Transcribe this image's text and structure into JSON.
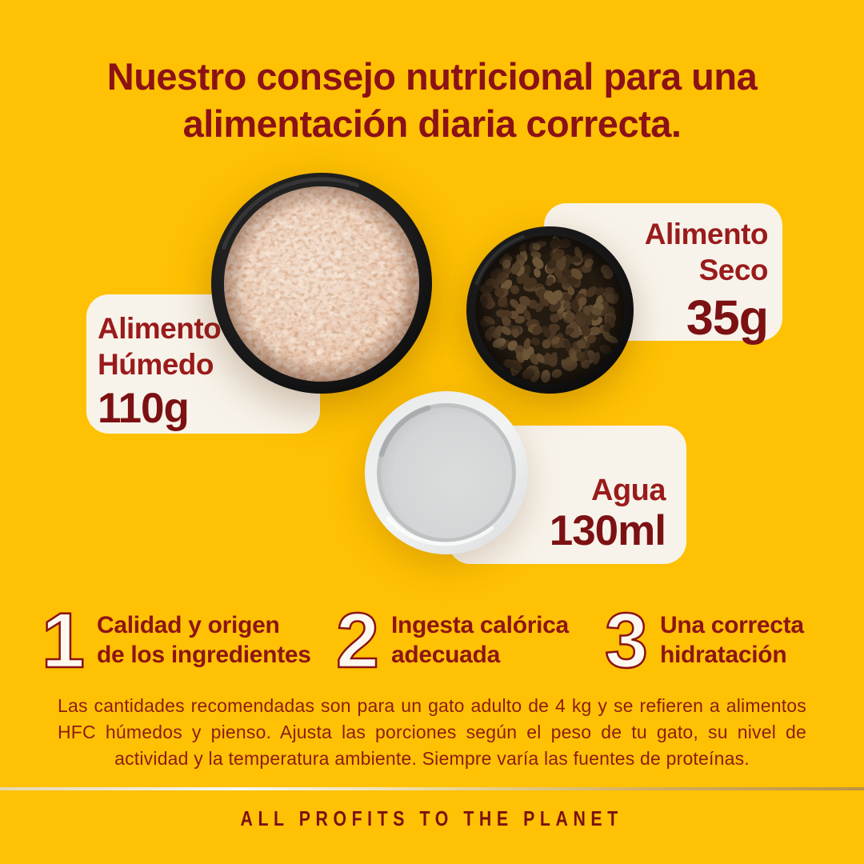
{
  "colors": {
    "background": "#FFC103",
    "card": "#F8F3EA",
    "title_red": "#8B1116",
    "label_red": "#9A1B1B",
    "amount_red": "#7C1113",
    "divider_gold": "#D4AF5E"
  },
  "title": {
    "line1": "Nuestro consejo nutricional para una",
    "line2": "alimentación diaria correcta."
  },
  "cards": {
    "humedo": {
      "label_line1": "Alimento",
      "label_line2": "Húmedo",
      "amount": "110g"
    },
    "seco": {
      "label_line1": "Alimento",
      "label_line2": "Seco",
      "amount": "35g"
    },
    "agua": {
      "label_line1": "Agua",
      "amount": "130ml"
    }
  },
  "bowls": [
    {
      "name": "wet-food-bowl"
    },
    {
      "name": "dry-food-bowl"
    },
    {
      "name": "water-bowl"
    }
  ],
  "tips": [
    {
      "number": "1",
      "line1": "Calidad y origen",
      "line2": "de los ingredientes"
    },
    {
      "number": "2",
      "line1": "Ingesta calórica",
      "line2": "adecuada"
    },
    {
      "number": "3",
      "line1": "Una correcta",
      "line2": "hidratación"
    }
  ],
  "disclaimer": "Las cantidades recomendadas son para un gato adulto de 4 kg y se refieren a alimentos HFC húmedos y pienso. Ajusta las porciones según el peso de tu gato, su nivel de actividad y la temperatura ambiente. Siempre varía las fuentes de proteínas.",
  "footer": "ALL PROFITS TO THE PLANET"
}
